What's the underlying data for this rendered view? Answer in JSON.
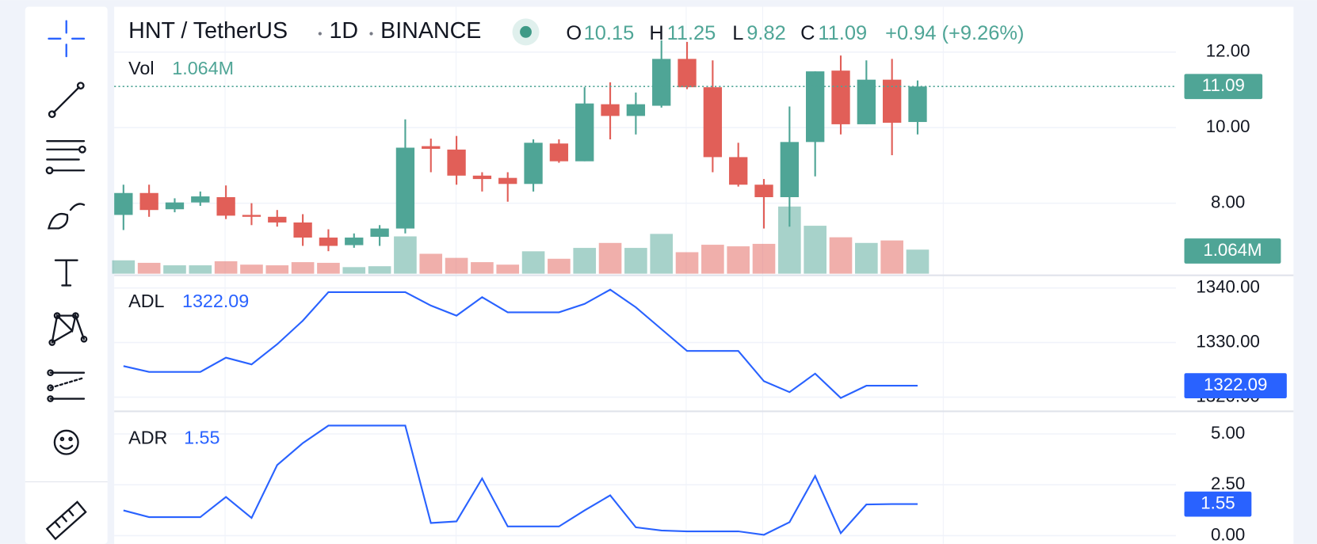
{
  "chart_data": [
    {
      "type": "candlestick",
      "title": "HNT / TetherUS",
      "interval": "1D",
      "exchange": "BINANCE",
      "ohlc_letters": [
        "O",
        "H",
        "L",
        "C"
      ],
      "change_label": "+0.94 (+9.26%)",
      "up_color": "#4fa596",
      "down_color": "#e15f58",
      "open": [
        7.69,
        8.27,
        7.84,
        8.02,
        8.16,
        7.69,
        7.64,
        7.49,
        7.09,
        6.89,
        7.11,
        7.33,
        9.51,
        9.42,
        8.73,
        8.67,
        8.51,
        9.58,
        9.11,
        10.62,
        10.31,
        10.58,
        11.82,
        11.07,
        9.22,
        8.49,
        8.16,
        9.62,
        11.51,
        10.09,
        11.27,
        10.15
      ],
      "high": [
        8.49,
        8.49,
        8.13,
        8.31,
        8.47,
        8.0,
        7.82,
        7.71,
        7.31,
        7.2,
        7.42,
        10.22,
        9.71,
        9.78,
        8.82,
        8.82,
        9.69,
        9.69,
        11.07,
        11.2,
        10.93,
        12.31,
        12.27,
        11.78,
        9.6,
        8.64,
        10.56,
        11.49,
        11.91,
        11.78,
        11.82,
        11.25
      ],
      "low": [
        7.29,
        7.64,
        7.76,
        7.93,
        7.58,
        7.42,
        7.38,
        6.87,
        6.73,
        6.82,
        6.87,
        7.2,
        8.82,
        8.49,
        8.31,
        8.04,
        8.31,
        9.07,
        9.11,
        9.69,
        9.82,
        10.53,
        11.02,
        8.82,
        8.44,
        7.33,
        7.38,
        8.71,
        9.82,
        10.09,
        9.27,
        9.82
      ],
      "close": [
        8.27,
        7.82,
        8.02,
        8.18,
        7.67,
        7.64,
        7.49,
        7.09,
        6.87,
        7.09,
        7.33,
        9.47,
        9.44,
        8.73,
        8.64,
        8.51,
        9.6,
        9.11,
        10.64,
        10.31,
        10.62,
        11.82,
        11.07,
        9.22,
        8.49,
        8.16,
        9.62,
        11.49,
        10.09,
        11.27,
        10.13,
        11.09
      ],
      "ylim": [
        6.09,
        13.2
      ],
      "yticks": [
        {
          "value": 8,
          "label": "8.00"
        },
        {
          "value": 10,
          "label": "10.00"
        },
        {
          "value": 12,
          "label": "12.00"
        }
      ],
      "volume": {
        "name": "Vol",
        "last_label": "1.064M",
        "values": [
          0.59,
          0.48,
          0.37,
          0.37,
          0.55,
          0.4,
          0.37,
          0.51,
          0.48,
          0.29,
          0.33,
          1.65,
          0.88,
          0.7,
          0.51,
          0.4,
          0.99,
          0.66,
          1.14,
          1.36,
          1.14,
          1.76,
          0.95,
          1.28,
          1.21,
          1.32,
          2.97,
          2.12,
          1.61,
          1.36,
          1.47,
          1.064
        ]
      }
    },
    {
      "type": "line",
      "name": "ADL",
      "color": "#2962ff",
      "values": [
        1325.69,
        1324.62,
        1324.62,
        1324.62,
        1327.23,
        1326.0,
        1329.69,
        1334.0,
        1339.23,
        1339.23,
        1339.23,
        1339.23,
        1336.77,
        1334.92,
        1338.31,
        1335.54,
        1335.54,
        1335.54,
        1337.08,
        1339.69,
        1336.46,
        1332.46,
        1328.46,
        1328.46,
        1328.46,
        1322.92,
        1320.92,
        1324.31,
        1319.85,
        1322.09,
        1322.09,
        1322.09
      ],
      "ylim": [
        1317.4,
        1342
      ],
      "yticks": [
        {
          "value": 1320,
          "label": "1320.00"
        },
        {
          "value": 1330,
          "label": "1330.00"
        },
        {
          "value": 1340,
          "label": "1340.00"
        }
      ]
    },
    {
      "type": "line",
      "name": "ADR",
      "color": "#2962ff",
      "values": [
        1.24,
        0.91,
        0.91,
        0.91,
        1.9,
        0.87,
        3.47,
        4.55,
        5.41,
        5.41,
        5.41,
        5.41,
        0.62,
        0.7,
        2.81,
        0.45,
        0.45,
        0.45,
        1.24,
        1.98,
        0.41,
        0.25,
        0.21,
        0.21,
        0.21,
        0.04,
        0.66,
        2.93,
        0.12,
        1.53,
        1.55,
        1.55
      ],
      "ylim": [
        -0.41,
        6.03
      ],
      "yticks": [
        {
          "value": 0,
          "label": "0.00"
        },
        {
          "value": 2.5,
          "label": "2.50"
        },
        {
          "value": 5,
          "label": "5.00"
        }
      ]
    }
  ]
}
